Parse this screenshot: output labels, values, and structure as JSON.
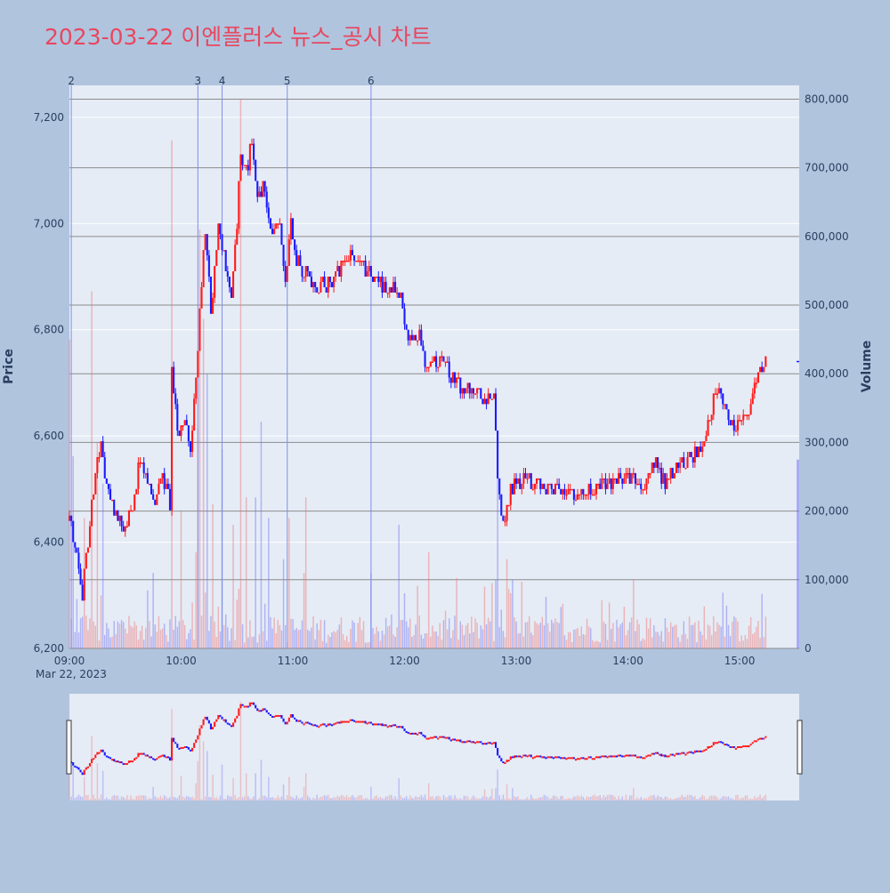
{
  "chart_data": {
    "type": "candlestick",
    "title": "2023-03-22 이엔플러스 뉴스_공시 차트",
    "date_label": "Mar 22, 2023",
    "ylabel": "Price",
    "y2label": "Volume",
    "price_range": [
      6200,
      7260
    ],
    "volume_range": [
      0,
      820000
    ],
    "price_ticks": [
      "6,200",
      "6,400",
      "6,600",
      "6,800",
      "7,000",
      "7,200"
    ],
    "volume_ticks": [
      "0",
      "100,000",
      "200,000",
      "300,000",
      "400,000",
      "500,000",
      "600,000",
      "700,000",
      "800,000"
    ],
    "x_ticks": [
      "09:00",
      "10:00",
      "11:00",
      "12:00",
      "13:00",
      "14:00",
      "15:00"
    ],
    "news_markers": [
      {
        "label": "2",
        "time": "09:01"
      },
      {
        "label": "3",
        "time": "10:09"
      },
      {
        "label": "4",
        "time": "10:22"
      },
      {
        "label": "5",
        "time": "10:57"
      },
      {
        "label": "6",
        "time": "11:42"
      }
    ],
    "price_keypoints": [
      [
        "09:00",
        6440
      ],
      [
        "09:04",
        6380
      ],
      [
        "09:07",
        6300
      ],
      [
        "09:10",
        6400
      ],
      [
        "09:13",
        6500
      ],
      [
        "09:17",
        6590
      ],
      [
        "09:20",
        6500
      ],
      [
        "09:24",
        6460
      ],
      [
        "09:29",
        6430
      ],
      [
        "09:35",
        6480
      ],
      [
        "09:38",
        6560
      ],
      [
        "09:42",
        6520
      ],
      [
        "09:46",
        6480
      ],
      [
        "09:50",
        6520
      ],
      [
        "09:54",
        6470
      ],
      [
        "09:55",
        6730
      ],
      [
        "09:58",
        6600
      ],
      [
        "10:02",
        6640
      ],
      [
        "10:05",
        6580
      ],
      [
        "10:08",
        6700
      ],
      [
        "10:10",
        6840
      ],
      [
        "10:13",
        6990
      ],
      [
        "10:16",
        6830
      ],
      [
        "10:20",
        6990
      ],
      [
        "10:24",
        6920
      ],
      [
        "10:27",
        6850
      ],
      [
        "10:30",
        7000
      ],
      [
        "10:32",
        7140
      ],
      [
        "10:35",
        7100
      ],
      [
        "10:38",
        7150
      ],
      [
        "10:41",
        7050
      ],
      [
        "10:44",
        7070
      ],
      [
        "10:47",
        7010
      ],
      [
        "10:50",
        6990
      ],
      [
        "10:53",
        6990
      ],
      [
        "10:56",
        6900
      ],
      [
        "10:59",
        7010
      ],
      [
        "11:02",
        6930
      ],
      [
        "11:08",
        6900
      ],
      [
        "11:14",
        6880
      ],
      [
        "11:20",
        6890
      ],
      [
        "11:26",
        6920
      ],
      [
        "11:32",
        6950
      ],
      [
        "11:37",
        6930
      ],
      [
        "11:42",
        6900
      ],
      [
        "11:48",
        6880
      ],
      [
        "11:54",
        6880
      ],
      [
        "11:58",
        6870
      ],
      [
        "12:00",
        6800
      ],
      [
        "12:04",
        6780
      ],
      [
        "12:08",
        6790
      ],
      [
        "12:12",
        6720
      ],
      [
        "12:16",
        6740
      ],
      [
        "12:20",
        6740
      ],
      [
        "12:24",
        6720
      ],
      [
        "12:28",
        6700
      ],
      [
        "12:32",
        6690
      ],
      [
        "12:36",
        6680
      ],
      [
        "12:40",
        6680
      ],
      [
        "12:44",
        6660
      ],
      [
        "12:48",
        6690
      ],
      [
        "12:50",
        6530
      ],
      [
        "12:53",
        6430
      ],
      [
        "12:57",
        6500
      ],
      [
        "13:00",
        6520
      ],
      [
        "13:08",
        6510
      ],
      [
        "13:15",
        6500
      ],
      [
        "13:23",
        6500
      ],
      [
        "13:30",
        6490
      ],
      [
        "13:40",
        6500
      ],
      [
        "13:50",
        6510
      ],
      [
        "14:00",
        6530
      ],
      [
        "14:08",
        6510
      ],
      [
        "14:15",
        6550
      ],
      [
        "14:20",
        6510
      ],
      [
        "14:25",
        6540
      ],
      [
        "14:30",
        6550
      ],
      [
        "14:35",
        6560
      ],
      [
        "14:40",
        6580
      ],
      [
        "14:45",
        6650
      ],
      [
        "14:48",
        6690
      ],
      [
        "14:52",
        6650
      ],
      [
        "14:56",
        6620
      ],
      [
        "15:00",
        6630
      ],
      [
        "15:05",
        6640
      ],
      [
        "15:08",
        6700
      ],
      [
        "15:12",
        6720
      ],
      [
        "15:14",
        6740
      ]
    ],
    "volume_spikes": [
      [
        "09:00",
        450000
      ],
      [
        "09:02",
        280000
      ],
      [
        "09:08",
        190000
      ],
      [
        "09:12",
        520000
      ],
      [
        "09:15",
        300000
      ],
      [
        "09:18",
        240000
      ],
      [
        "09:45",
        110000
      ],
      [
        "09:55",
        740000
      ],
      [
        "10:00",
        200000
      ],
      [
        "10:08",
        140000
      ],
      [
        "10:09",
        320000
      ],
      [
        "10:10",
        610000
      ],
      [
        "10:12",
        480000
      ],
      [
        "10:14",
        400000
      ],
      [
        "10:17",
        210000
      ],
      [
        "10:22",
        290000
      ],
      [
        "10:28",
        180000
      ],
      [
        "10:32",
        800000
      ],
      [
        "10:35",
        220000
      ],
      [
        "10:40",
        220000
      ],
      [
        "10:43",
        330000
      ],
      [
        "10:47",
        190000
      ],
      [
        "10:55",
        130000
      ],
      [
        "10:58",
        190000
      ],
      [
        "11:06",
        110000
      ],
      [
        "11:07",
        220000
      ],
      [
        "11:42",
        110000
      ],
      [
        "11:57",
        180000
      ],
      [
        "12:13",
        140000
      ],
      [
        "12:43",
        90000
      ],
      [
        "12:47",
        95000
      ],
      [
        "12:49",
        100000
      ],
      [
        "12:50",
        250000
      ],
      [
        "12:55",
        130000
      ],
      [
        "12:58",
        100000
      ],
      [
        "14:03",
        100000
      ],
      [
        "15:17",
        110000
      ],
      [
        "15:30",
        275000
      ]
    ]
  }
}
